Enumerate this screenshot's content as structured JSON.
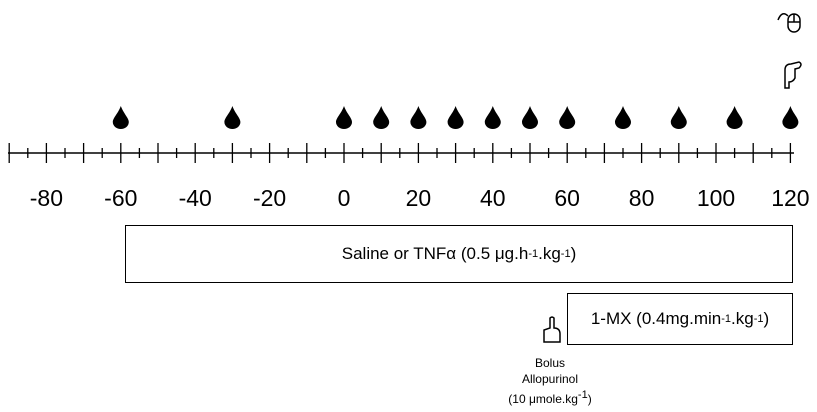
{
  "axis": {
    "labels": [
      "-80",
      "-60",
      "-40",
      "-20",
      "0",
      "20",
      "40",
      "60",
      "80",
      "100",
      "120"
    ]
  },
  "infusion": {
    "text": "Saline or TNFα (0.5 μg.h",
    "sup1": "-1",
    "mid": ".kg",
    "sup2": "-1",
    "end": ")"
  },
  "mx": {
    "text": "1-MX (0.4mg.min",
    "sup1": "-1",
    "mid": ".kg",
    "sup2": "-1",
    "end": ")"
  },
  "bolus": {
    "line1": "Bolus",
    "line2": "Allopurinol",
    "line3": "(10 μmole.kg",
    "sup": "-1",
    "end": ")"
  }
}
